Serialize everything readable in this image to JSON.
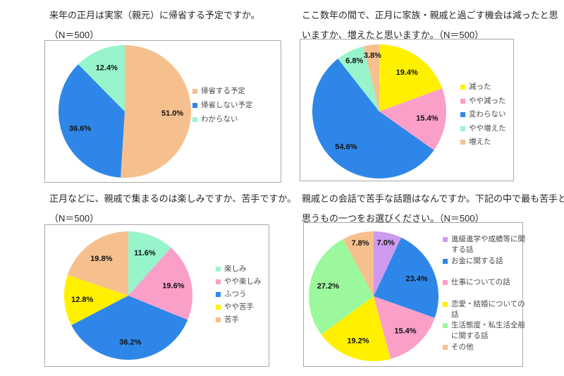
{
  "page": {
    "background": "#ffffff",
    "language": "ja"
  },
  "colors": {
    "orange": "#F6C08E",
    "blue": "#2E87E8",
    "mint": "#98F5CB",
    "yellow": "#FFF000",
    "pink": "#FA9FC8",
    "purple": "#CC9AEF",
    "light_green": "#9CF89C",
    "title_text": "#262626",
    "legend_text": "#4A4A4A",
    "label_text": "#111111",
    "frame_border": "#A8A8A8"
  },
  "chart_data": [
    {
      "type": "pie",
      "title_lines": [
        "来年の正月は実家（親元）に帰省する予定ですか。",
        "（N＝500）"
      ],
      "n": 500,
      "start_angle_deg": 0,
      "direction": "clockwise",
      "labels": "percent-inside",
      "legend_position": "right",
      "slices": [
        {
          "label": "帰省する予定",
          "value": 51.0,
          "color": "#F6C08E"
        },
        {
          "label": "帰省しない予定",
          "value": 36.6,
          "color": "#2E87E8"
        },
        {
          "label": "わからない",
          "value": 12.4,
          "color": "#98F5CB"
        }
      ]
    },
    {
      "type": "pie",
      "title_lines": [
        "ここ数年の間で、正月に家族・親戚と過ごす機会は減ったと思",
        "いますか、増えたと思いますか。（N＝500）"
      ],
      "n": 500,
      "start_angle_deg": 0,
      "direction": "clockwise",
      "labels": "percent-inside",
      "legend_position": "right",
      "slices": [
        {
          "label": "減った",
          "value": 19.4,
          "color": "#FFF000"
        },
        {
          "label": "やや減った",
          "value": 15.4,
          "color": "#FA9FC8"
        },
        {
          "label": "変わらない",
          "value": 54.6,
          "color": "#2E87E8"
        },
        {
          "label": "やや増えた",
          "value": 6.8,
          "color": "#98F5CB"
        },
        {
          "label": "増えた",
          "value": 3.8,
          "color": "#F6C08E"
        }
      ]
    },
    {
      "type": "pie",
      "title_lines": [
        "正月などに、親戚で集まるのは楽しみですか、苦手ですか。",
        "（N＝500）"
      ],
      "n": 500,
      "start_angle_deg": 0,
      "direction": "clockwise",
      "labels": "percent-inside",
      "legend_position": "right",
      "slices": [
        {
          "label": "楽しみ",
          "value": 11.6,
          "color": "#98F5CB"
        },
        {
          "label": "やや楽しみ",
          "value": 19.6,
          "color": "#FA9FC8"
        },
        {
          "label": "ふつう",
          "value": 36.2,
          "color": "#2E87E8"
        },
        {
          "label": "やや苦手",
          "value": 12.8,
          "color": "#FFF000"
        },
        {
          "label": "苦手",
          "value": 19.8,
          "color": "#F6C08E"
        }
      ]
    },
    {
      "type": "pie",
      "title_lines": [
        "親戚との会話で苦手な話題はなんですか。下記の中で最も苦手と",
        "思うもの一つをお選びください。（N＝500）"
      ],
      "n": 500,
      "start_angle_deg": 0,
      "direction": "clockwise",
      "labels": "percent-inside",
      "legend_position": "right",
      "slices": [
        {
          "label": "進級進学や成績等に関する話",
          "value": 7.0,
          "color": "#CC9AEF"
        },
        {
          "label": "お金に関する話",
          "value": 23.4,
          "color": "#2E87E8"
        },
        {
          "label": "仕事についての話",
          "value": 15.4,
          "color": "#FA9FC8"
        },
        {
          "label": "恋愛・結婚についての話",
          "value": 19.2,
          "color": "#FFF000"
        },
        {
          "label": "生活態度・私生活全般に関する話",
          "value": 27.2,
          "color": "#9CF89C"
        },
        {
          "label": "その他",
          "value": 7.8,
          "color": "#F6C08E"
        }
      ]
    }
  ]
}
